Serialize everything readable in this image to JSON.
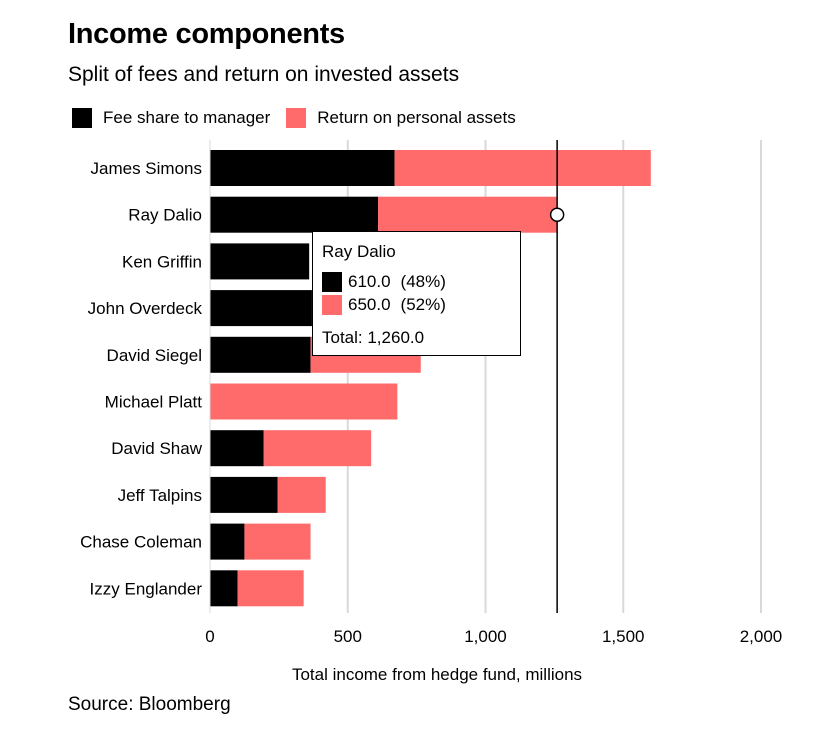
{
  "header": {
    "title": "Income components",
    "subtitle": "Split of fees and return on invested assets"
  },
  "colors": {
    "fee": "#000000",
    "return": "#ff6b6b",
    "grid": "#d9d9d9",
    "crosshair": "#000000"
  },
  "source": "Source: Bloomberg",
  "chart_data": {
    "type": "bar",
    "orientation": "horizontal",
    "stacked": true,
    "title": "Income components",
    "subtitle": "Split of fees and return on invested assets",
    "xlabel": "Total income from hedge fund, millions",
    "ylabel": "",
    "xlim": [
      0,
      2000
    ],
    "xticks": [
      0,
      500,
      1000,
      1500,
      2000
    ],
    "xtick_labels": [
      "0",
      "500",
      "1,000",
      "1,500",
      "2,000"
    ],
    "grid": true,
    "legend_position": "top-left",
    "categories": [
      "James Simons",
      "Ray Dalio",
      "Ken Griffin",
      "John Overdeck",
      "David Siegel",
      "Michael Platt",
      "David Shaw",
      "Jeff Talpins",
      "Chase Coleman",
      "Izzy Englander"
    ],
    "series": [
      {
        "name": "Fee share to manager",
        "values": [
          670,
          610,
          360,
          370,
          365,
          0,
          195,
          245,
          125,
          100
        ]
      },
      {
        "name": "Return on personal assets",
        "values": [
          930,
          650,
          0,
          0,
          400,
          680,
          390,
          175,
          240,
          240
        ]
      }
    ],
    "tooltip": {
      "category": "Ray Dalio",
      "fee_value": "610.0",
      "fee_pct": "(48%)",
      "return_value": "650.0",
      "return_pct": "(52%)",
      "total": "Total: 1,260.0"
    },
    "crosshair_value": 1260
  }
}
